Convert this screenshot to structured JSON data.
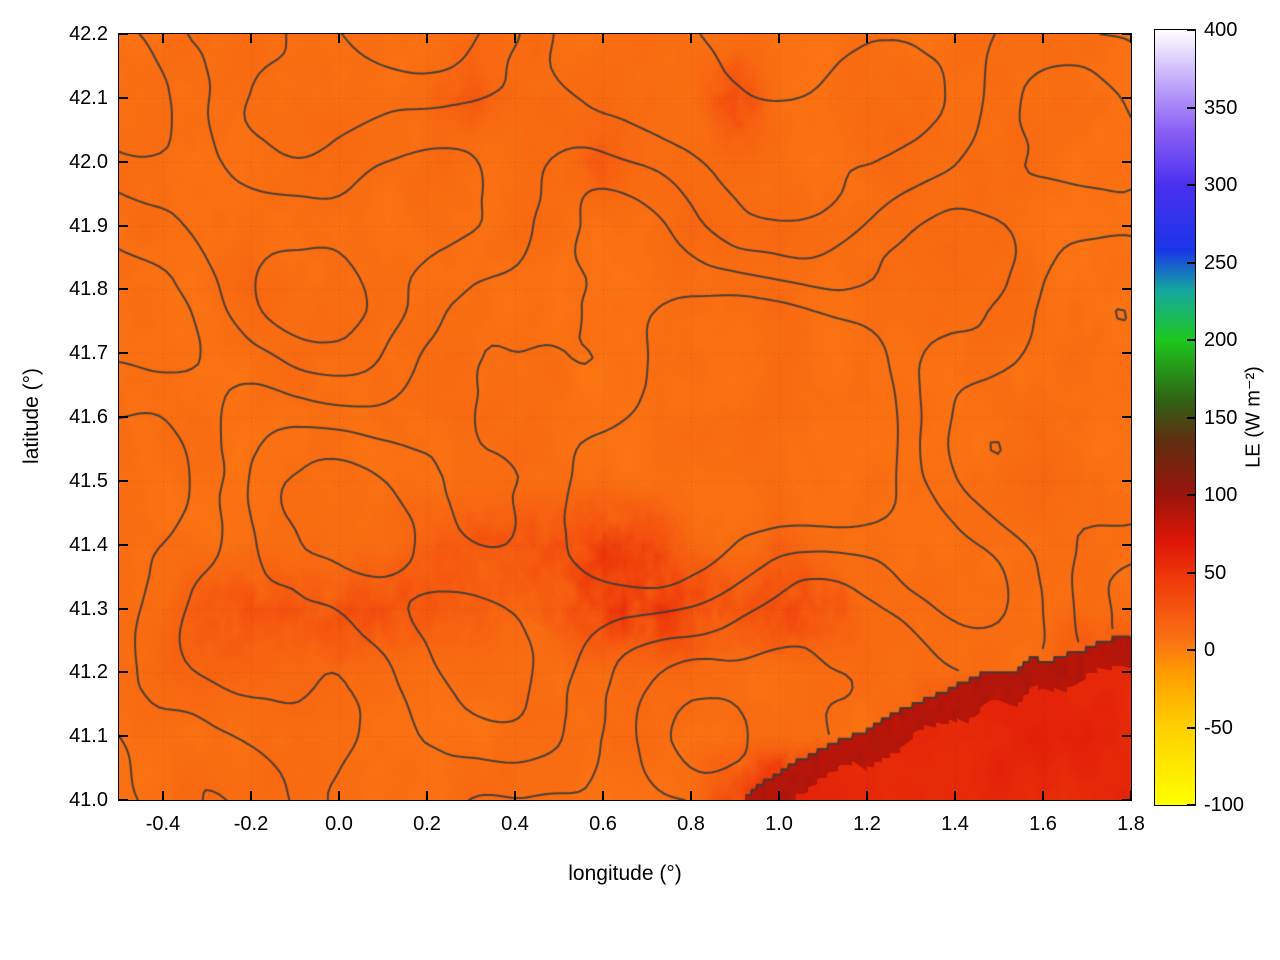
{
  "figure": {
    "background": "#ffffff"
  },
  "axes": {
    "xlabel": "longitude (°)",
    "ylabel": "latitude (°)",
    "xlim": [
      -0.5,
      1.8
    ],
    "ylim": [
      41.0,
      42.2
    ],
    "xticks": [
      "-0.4",
      "-0.2",
      "0.0",
      "0.2",
      "0.4",
      "0.6",
      "0.8",
      "1.0",
      "1.2",
      "1.4",
      "1.6",
      "1.8"
    ],
    "yticks": [
      "41.0",
      "41.1",
      "41.2",
      "41.3",
      "41.4",
      "41.5",
      "41.6",
      "41.7",
      "41.8",
      "41.9",
      "42.0",
      "42.1",
      "42.2"
    ]
  },
  "colorbar": {
    "label": "LE (W m⁻²)",
    "min": -100,
    "max": 400,
    "ticks": [
      "-100",
      "-50",
      "0",
      "50",
      "100",
      "150",
      "200",
      "250",
      "300",
      "350",
      "400"
    ],
    "stops": [
      {
        "v": -100,
        "c": "#ffff00"
      },
      {
        "v": -50,
        "c": "#ffd000"
      },
      {
        "v": -15,
        "c": "#ff9c00"
      },
      {
        "v": 5,
        "c": "#fb7313"
      },
      {
        "v": 45,
        "c": "#ef3a0a"
      },
      {
        "v": 70,
        "c": "#de1607"
      },
      {
        "v": 100,
        "c": "#9b150c"
      },
      {
        "v": 135,
        "c": "#5f2e10"
      },
      {
        "v": 162,
        "c": "#2f6414"
      },
      {
        "v": 200,
        "c": "#1dc81d"
      },
      {
        "v": 232,
        "c": "#14a8a0"
      },
      {
        "v": 258,
        "c": "#1a35e8"
      },
      {
        "v": 300,
        "c": "#4a30f0"
      },
      {
        "v": 335,
        "c": "#8a60f4"
      },
      {
        "v": 365,
        "c": "#bfa6fa"
      },
      {
        "v": 400,
        "c": "#ffffff"
      }
    ]
  },
  "chart_data": {
    "type": "heatmap",
    "title": "",
    "value_label": "LE (W m⁻²)",
    "x_range": [
      -0.5,
      1.8
    ],
    "y_range": [
      41.0,
      42.2
    ],
    "grid_lat_order": "north_to_south",
    "lats": [
      42.2,
      42.1,
      42.0,
      41.9,
      41.8,
      41.7,
      41.6,
      41.5,
      41.4,
      41.3,
      41.2,
      41.1,
      41.0
    ],
    "lons": [
      -0.5,
      -0.4,
      -0.3,
      -0.2,
      -0.1,
      0.0,
      0.1,
      0.2,
      0.3,
      0.4,
      0.5,
      0.6,
      0.7,
      0.8,
      0.9,
      1.0,
      1.1,
      1.2,
      1.3,
      1.4,
      1.5,
      1.6,
      1.7,
      1.8
    ],
    "grid": [
      [
        8,
        8,
        8,
        9,
        8,
        8,
        8,
        9,
        8,
        8,
        8,
        8,
        9,
        8,
        8,
        8,
        8,
        9,
        8,
        8,
        8,
        8,
        8,
        8
      ],
      [
        8,
        8,
        8,
        8,
        9,
        8,
        8,
        8,
        22,
        9,
        8,
        8,
        8,
        8,
        30,
        8,
        8,
        9,
        8,
        8,
        8,
        8,
        8,
        8
      ],
      [
        8,
        9,
        8,
        8,
        8,
        8,
        8,
        8,
        8,
        8,
        9,
        20,
        9,
        8,
        12,
        8,
        8,
        8,
        9,
        8,
        8,
        8,
        8,
        8
      ],
      [
        8,
        8,
        8,
        9,
        8,
        8,
        8,
        8,
        8,
        8,
        8,
        8,
        9,
        14,
        8,
        8,
        8,
        8,
        8,
        9,
        8,
        8,
        8,
        8
      ],
      [
        8,
        8,
        9,
        16,
        8,
        8,
        8,
        8,
        8,
        8,
        8,
        8,
        8,
        8,
        9,
        8,
        8,
        8,
        8,
        8,
        9,
        8,
        8,
        8
      ],
      [
        8,
        8,
        8,
        8,
        8,
        9,
        8,
        8,
        8,
        8,
        8,
        8,
        8,
        9,
        8,
        8,
        8,
        8,
        8,
        8,
        8,
        9,
        8,
        8
      ],
      [
        8,
        9,
        8,
        8,
        8,
        8,
        8,
        8,
        9,
        8,
        8,
        8,
        8,
        8,
        8,
        8,
        9,
        8,
        8,
        8,
        8,
        8,
        8,
        8
      ],
      [
        8,
        8,
        8,
        8,
        9,
        8,
        8,
        8,
        8,
        8,
        8,
        9,
        8,
        8,
        8,
        8,
        8,
        8,
        8,
        8,
        8,
        12,
        8,
        8
      ],
      [
        8,
        8,
        8,
        8,
        8,
        8,
        9,
        18,
        22,
        24,
        26,
        34,
        30,
        14,
        9,
        16,
        10,
        8,
        8,
        8,
        8,
        8,
        8,
        8
      ],
      [
        9,
        10,
        20,
        26,
        22,
        24,
        26,
        22,
        18,
        14,
        20,
        36,
        40,
        34,
        22,
        30,
        26,
        10,
        8,
        8,
        8,
        8,
        9,
        8
      ],
      [
        10,
        14,
        16,
        14,
        12,
        14,
        10,
        9,
        12,
        9,
        8,
        9,
        10,
        12,
        10,
        9,
        8,
        8,
        8,
        8,
        8,
        9,
        26,
        30
      ],
      [
        8,
        9,
        10,
        9,
        8,
        8,
        9,
        8,
        8,
        9,
        8,
        8,
        10,
        9,
        8,
        8,
        9,
        8,
        16,
        56,
        60,
        61,
        62,
        63
      ],
      [
        8,
        8,
        9,
        8,
        9,
        8,
        8,
        8,
        10,
        9,
        8,
        9,
        8,
        9,
        28,
        57,
        60,
        61,
        62,
        62,
        63,
        63,
        64,
        65
      ]
    ],
    "sea": {
      "coast": [
        [
          0.9,
          41.0
        ],
        [
          1.0,
          41.04
        ],
        [
          1.1,
          41.08
        ],
        [
          1.2,
          41.11
        ],
        [
          1.3,
          41.15
        ],
        [
          1.4,
          41.18
        ],
        [
          1.5,
          41.2
        ],
        [
          1.6,
          41.22
        ],
        [
          1.7,
          41.24
        ],
        [
          1.8,
          41.26
        ]
      ],
      "interior_value": 58,
      "edge_value": 88
    },
    "contours": {
      "color": "#3a3a3a",
      "levels": [
        -1.8,
        -0.9,
        0,
        0.9,
        1.8
      ]
    }
  }
}
